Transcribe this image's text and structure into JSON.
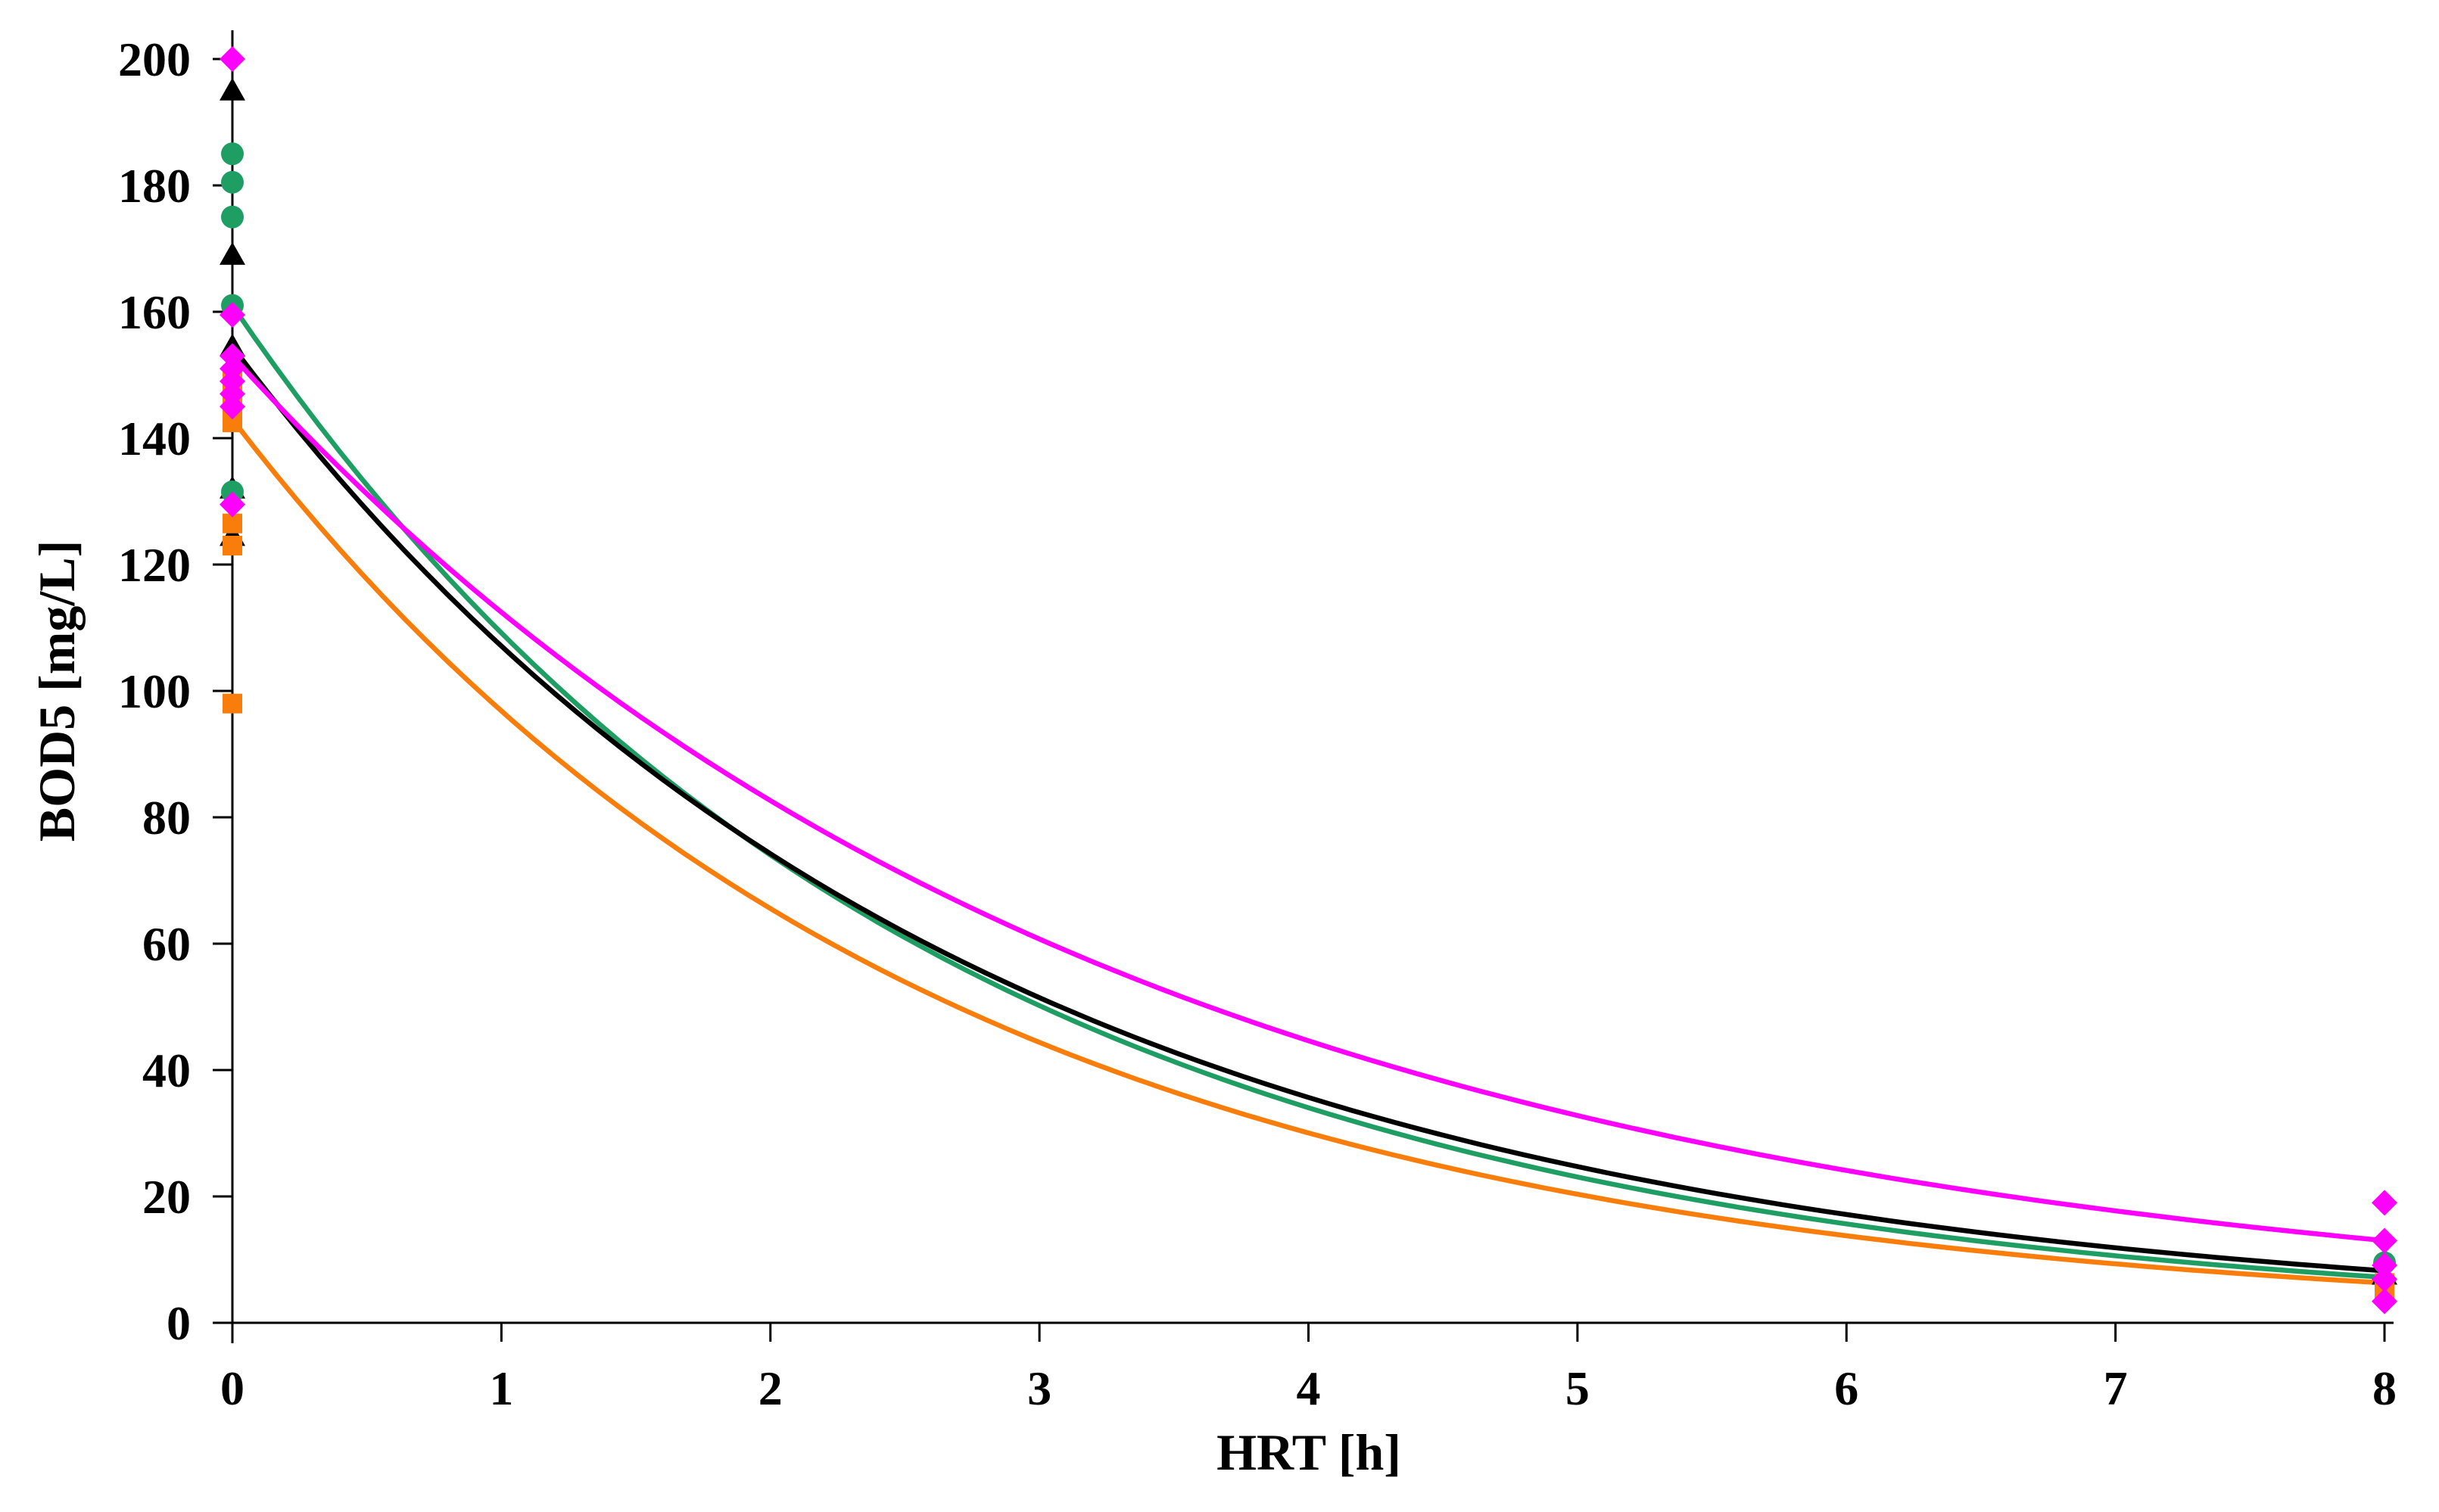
{
  "figure": {
    "background": "#FFFFFF",
    "axis_color": "#000000"
  },
  "chart_data": {
    "type": "scatter",
    "title": "",
    "xlabel": "HRT [h]",
    "ylabel": "BOD5 [mg/L]",
    "xlim": [
      0,
      8
    ],
    "ylim": [
      0,
      200
    ],
    "xticks": [
      0,
      1,
      2,
      3,
      4,
      5,
      6,
      7,
      8
    ],
    "yticks": [
      0,
      20,
      40,
      60,
      80,
      100,
      120,
      140,
      160,
      180,
      200
    ],
    "grid": false,
    "legend": "none",
    "series": [
      {
        "name": "black-triangle-series",
        "marker": "triangle",
        "color": "#000000",
        "points": [
          [
            0,
            195
          ],
          [
            0,
            169
          ],
          [
            0,
            154.5
          ],
          [
            0,
            132
          ],
          [
            0,
            124.5
          ],
          [
            8,
            7.6
          ]
        ],
        "trendline": {
          "type": "exponential",
          "C0": 154.5,
          "k": 0.3665,
          "end_value": 8.2
        }
      },
      {
        "name": "green-circle-series",
        "marker": "circle",
        "color": "#1F9E64",
        "points": [
          [
            0,
            185
          ],
          [
            0,
            180.5
          ],
          [
            0,
            175
          ],
          [
            0,
            161
          ],
          [
            0,
            131.5
          ],
          [
            8,
            9.5
          ]
        ],
        "trendline": {
          "type": "exponential",
          "C0": 161,
          "k": 0.3885,
          "end_value": 7.2
        }
      },
      {
        "name": "orange-square-series",
        "marker": "square",
        "color": "#F97D0B",
        "points": [
          [
            0,
            150
          ],
          [
            0,
            147.5
          ],
          [
            0,
            145
          ],
          [
            0,
            142.5
          ],
          [
            0,
            126.5
          ],
          [
            0,
            123
          ],
          [
            0,
            98
          ],
          [
            8,
            6.3
          ],
          [
            8,
            4.5
          ]
        ],
        "trendline": {
          "type": "exponential",
          "C0": 143,
          "k": 0.39,
          "end_value": 6.3
        }
      },
      {
        "name": "magenta-diamond-series",
        "marker": "diamond",
        "color": "#FF00FF",
        "points": [
          [
            0,
            200
          ],
          [
            0,
            159.5
          ],
          [
            0,
            153
          ],
          [
            0,
            151
          ],
          [
            0,
            149
          ],
          [
            0,
            147
          ],
          [
            0,
            145
          ],
          [
            0,
            129.5
          ],
          [
            8,
            19
          ],
          [
            8,
            13
          ],
          [
            8,
            9.1
          ],
          [
            8,
            6.9
          ],
          [
            8,
            3.4
          ]
        ],
        "trendline": {
          "type": "exponential",
          "C0": 153,
          "k": 0.308,
          "end_value": 13.0
        }
      }
    ]
  }
}
